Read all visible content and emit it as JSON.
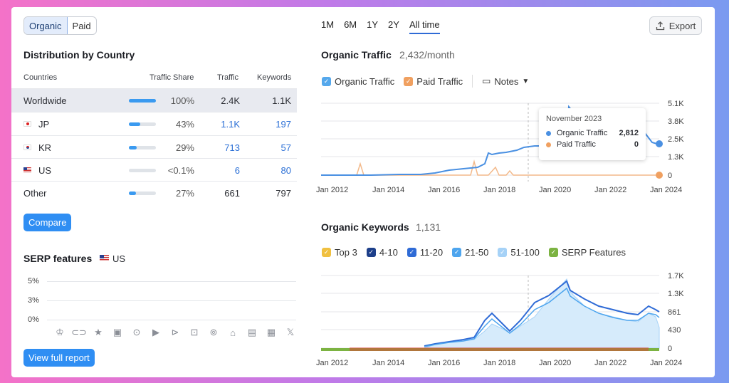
{
  "tabs": {
    "organic": "Organic",
    "paid": "Paid"
  },
  "distribution": {
    "title": "Distribution by Country",
    "headers": {
      "countries": "Countries",
      "share": "Traffic Share",
      "traffic": "Traffic",
      "keywords": "Keywords"
    },
    "rows": [
      {
        "name": "Worldwide",
        "share": "100%",
        "share_value": 1.0,
        "traffic": "2.4K",
        "keywords": "1.1K"
      },
      {
        "name": "JP",
        "share": "43%",
        "share_value": 0.43,
        "traffic": "1.1K",
        "keywords": "197"
      },
      {
        "name": "KR",
        "share": "29%",
        "share_value": 0.29,
        "traffic": "713",
        "keywords": "57"
      },
      {
        "name": "US",
        "share": "<0.1%",
        "share_value": 0.0,
        "traffic": "6",
        "keywords": "80"
      },
      {
        "name": "Other",
        "share": "27%",
        "share_value": 0.27,
        "traffic": "661",
        "keywords": "797"
      }
    ],
    "compare": "Compare"
  },
  "serp": {
    "title": "SERP features",
    "country": "US",
    "axis": [
      "5%",
      "3%",
      "0%"
    ],
    "view_full": "View full report"
  },
  "range_tabs": [
    "1M",
    "6M",
    "1Y",
    "2Y",
    "All time"
  ],
  "export": "Export",
  "organic_traffic": {
    "title": "Organic Traffic",
    "value": "2,432/month",
    "legend": {
      "organic": "Organic Traffic",
      "paid": "Paid Traffic",
      "notes": "Notes"
    },
    "yticks": [
      "5.1K",
      "3.8K",
      "2.5K",
      "1.3K",
      "0"
    ],
    "xticks": [
      "Jan 2012",
      "Jan 2014",
      "Jan 2016",
      "Jan 2018",
      "Jan 2020",
      "Jan 2022",
      "Jan 2024"
    ],
    "tooltip": {
      "date": "November 2023",
      "organic_label": "Organic Traffic",
      "organic_value": "2,812",
      "paid_label": "Paid Traffic",
      "paid_value": "0"
    }
  },
  "organic_keywords": {
    "title": "Organic Keywords",
    "value": "1,131",
    "legend": [
      "Top 3",
      "4-10",
      "11-20",
      "21-50",
      "51-100",
      "SERP Features"
    ],
    "yticks": [
      "1.7K",
      "1.3K",
      "861",
      "430",
      "0"
    ],
    "xticks": [
      "Jan 2012",
      "Jan 2014",
      "Jan 2016",
      "Jan 2018",
      "Jan 2020",
      "Jan 2022",
      "Jan 2024"
    ]
  },
  "colors": {
    "accent": "#2f8ef3",
    "organic": "#4a90e2",
    "paid": "#f0a060",
    "serp_green": "#7cb342"
  }
}
